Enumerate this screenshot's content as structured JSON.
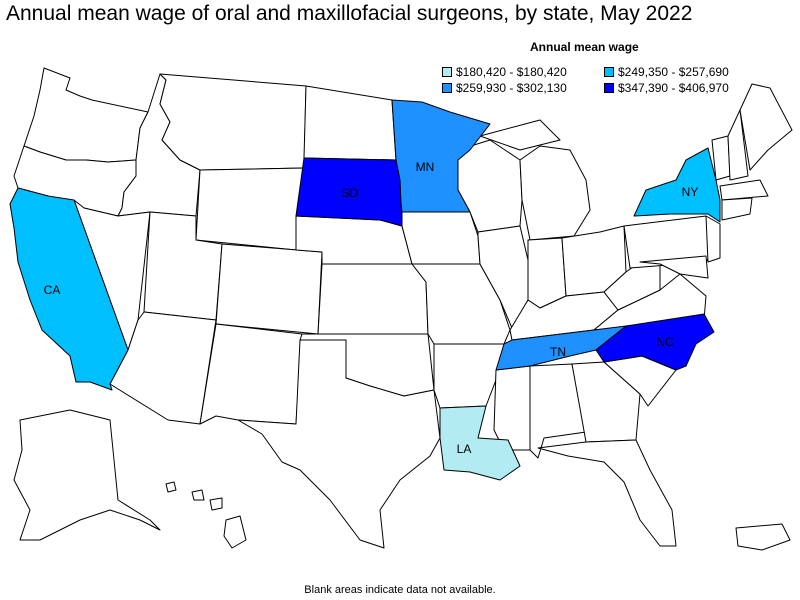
{
  "title": "Annual mean wage of oral and maxillofacial surgeons, by state, May 2022",
  "legend": {
    "title": "Annual mean wage",
    "items": [
      {
        "label": "$180,420 - $180,420",
        "color": "#b2ebf2"
      },
      {
        "label": "$249,350 - $257,690",
        "color": "#00bfff"
      },
      {
        "label": "$259,930 - $302,130",
        "color": "#1e90ff"
      },
      {
        "label": "$347,390 - $406,970",
        "color": "#0000ff"
      }
    ]
  },
  "states": [
    {
      "abbr": "CA",
      "range": "$249,350 - $257,690",
      "color": "#00bfff"
    },
    {
      "abbr": "NY",
      "range": "$249,350 - $257,690",
      "color": "#00bfff"
    },
    {
      "abbr": "MN",
      "range": "$259,930 - $302,130",
      "color": "#1e90ff"
    },
    {
      "abbr": "TN",
      "range": "$259,930 - $302,130",
      "color": "#1e90ff"
    },
    {
      "abbr": "SD",
      "range": "$347,390 - $406,970",
      "color": "#0000ff"
    },
    {
      "abbr": "NC",
      "range": "$347,390 - $406,970",
      "color": "#0000ff"
    },
    {
      "abbr": "LA",
      "range": "$180,420 - $180,420",
      "color": "#b2ebf2"
    }
  ],
  "footnote": "Blank areas indicate data not available."
}
